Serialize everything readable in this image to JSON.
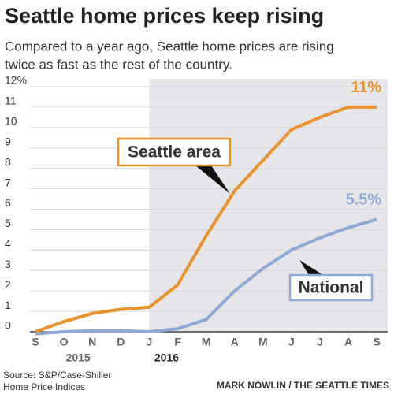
{
  "chart_data": {
    "type": "line",
    "title": "Seattle home prices keep rising",
    "subtitle": [
      "Compared to a year ago, Seattle home prices are rising",
      "twice as fast as the rest of the country."
    ],
    "categories": [
      "S",
      "O",
      "N",
      "D",
      "J",
      "F",
      "M",
      "A",
      "M",
      "J",
      "J",
      "A",
      "S"
    ],
    "years": [
      "2015",
      "2016"
    ],
    "series": [
      {
        "name": "Seattle area",
        "color": "#e8912d",
        "values": [
          0,
          0.5,
          0.9,
          1.1,
          1.2,
          2.3,
          4.7,
          6.9,
          8.4,
          9.9,
          10.5,
          11,
          11
        ],
        "value_labels": [
          null,
          null,
          null,
          null,
          null,
          null,
          null,
          null,
          null,
          null,
          null,
          null,
          "11%"
        ]
      },
      {
        "name": "National",
        "color": "#8fa9d6",
        "values": [
          -0.1,
          0,
          0.05,
          0.05,
          0,
          0.15,
          0.6,
          2.0,
          3.1,
          4.0,
          4.6,
          5.1,
          5.5
        ],
        "value_labels": [
          null,
          null,
          null,
          null,
          null,
          null,
          null,
          null,
          null,
          null,
          null,
          null,
          "5.5%"
        ]
      }
    ],
    "ylim": [
      0,
      12
    ],
    "yticks": [
      0,
      1,
      2,
      3,
      4,
      5,
      6,
      7,
      8,
      9,
      10,
      11,
      {
        "value": 12,
        "label": "12%"
      }
    ],
    "grid": true,
    "source": [
      "Source: S&P/Case-Shiller",
      "Home Price Indices"
    ],
    "credit": "MARK NOWLIN / THE SEATTLE TIMES"
  }
}
